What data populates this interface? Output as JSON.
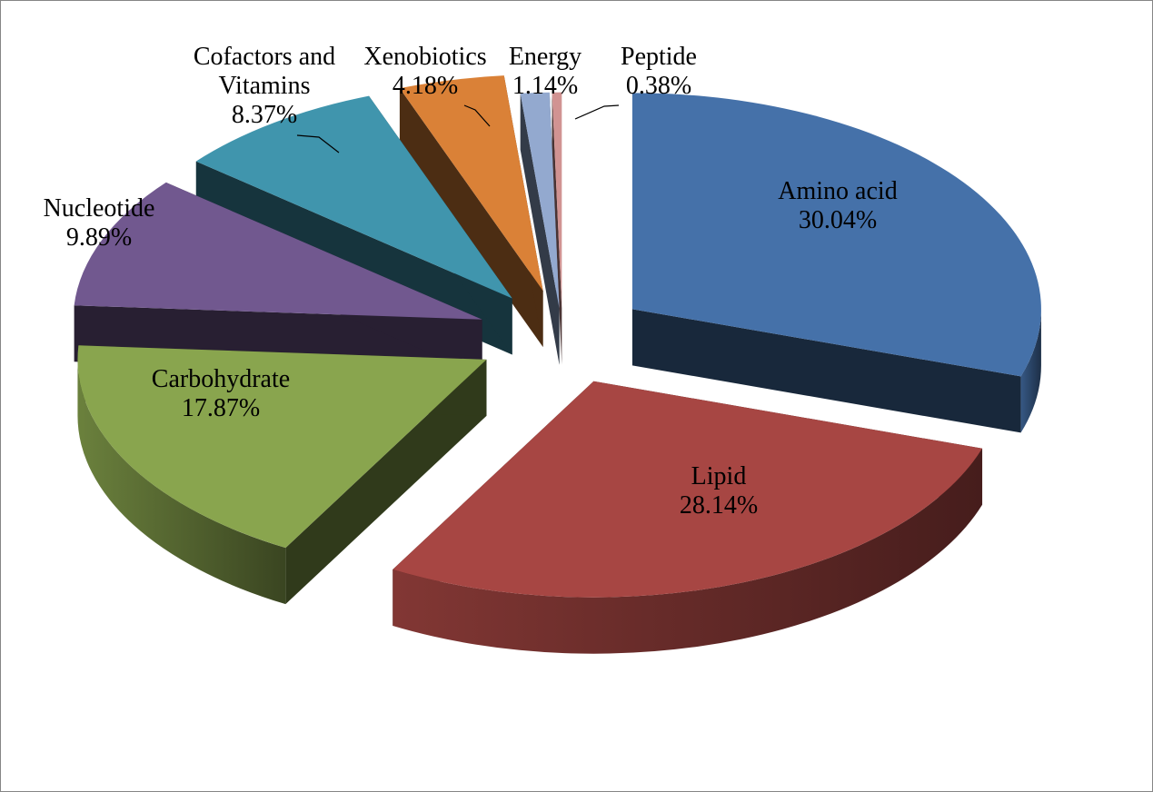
{
  "chart_data": {
    "type": "pie",
    "variant": "3d-exploded",
    "title": "",
    "slices": [
      {
        "label": "Amino acid",
        "label_lines": [
          "Amino acid"
        ],
        "value": 30.04,
        "value_text": "30.04%",
        "color": "#4571A9"
      },
      {
        "label": "Lipid",
        "label_lines": [
          "Lipid"
        ],
        "value": 28.14,
        "value_text": "28.14%",
        "color": "#A74643"
      },
      {
        "label": "Carbohydrate",
        "label_lines": [
          "Carbohydrate"
        ],
        "value": 17.87,
        "value_text": "17.87%",
        "color": "#89A54E"
      },
      {
        "label": "Nucleotide",
        "label_lines": [
          "Nucleotide"
        ],
        "value": 9.89,
        "value_text": "9.89%",
        "color": "#71588F"
      },
      {
        "label": "Cofactors and Vitamins",
        "label_lines": [
          "Cofactors and",
          "Vitamins"
        ],
        "value": 8.37,
        "value_text": "8.37%",
        "color": "#4095AD"
      },
      {
        "label": "Xenobiotics",
        "label_lines": [
          "Xenobiotics"
        ],
        "value": 4.18,
        "value_text": "4.18%",
        "color": "#DA8137"
      },
      {
        "label": "Energy",
        "label_lines": [
          "Energy"
        ],
        "value": 1.14,
        "value_text": "1.14%",
        "color": "#93A9CF"
      },
      {
        "label": "Peptide",
        "label_lines": [
          "Peptide"
        ],
        "value": 0.38,
        "value_text": "0.38%",
        "color": "#D19392"
      }
    ],
    "legend": "none",
    "labels": "category-and-percentage"
  }
}
